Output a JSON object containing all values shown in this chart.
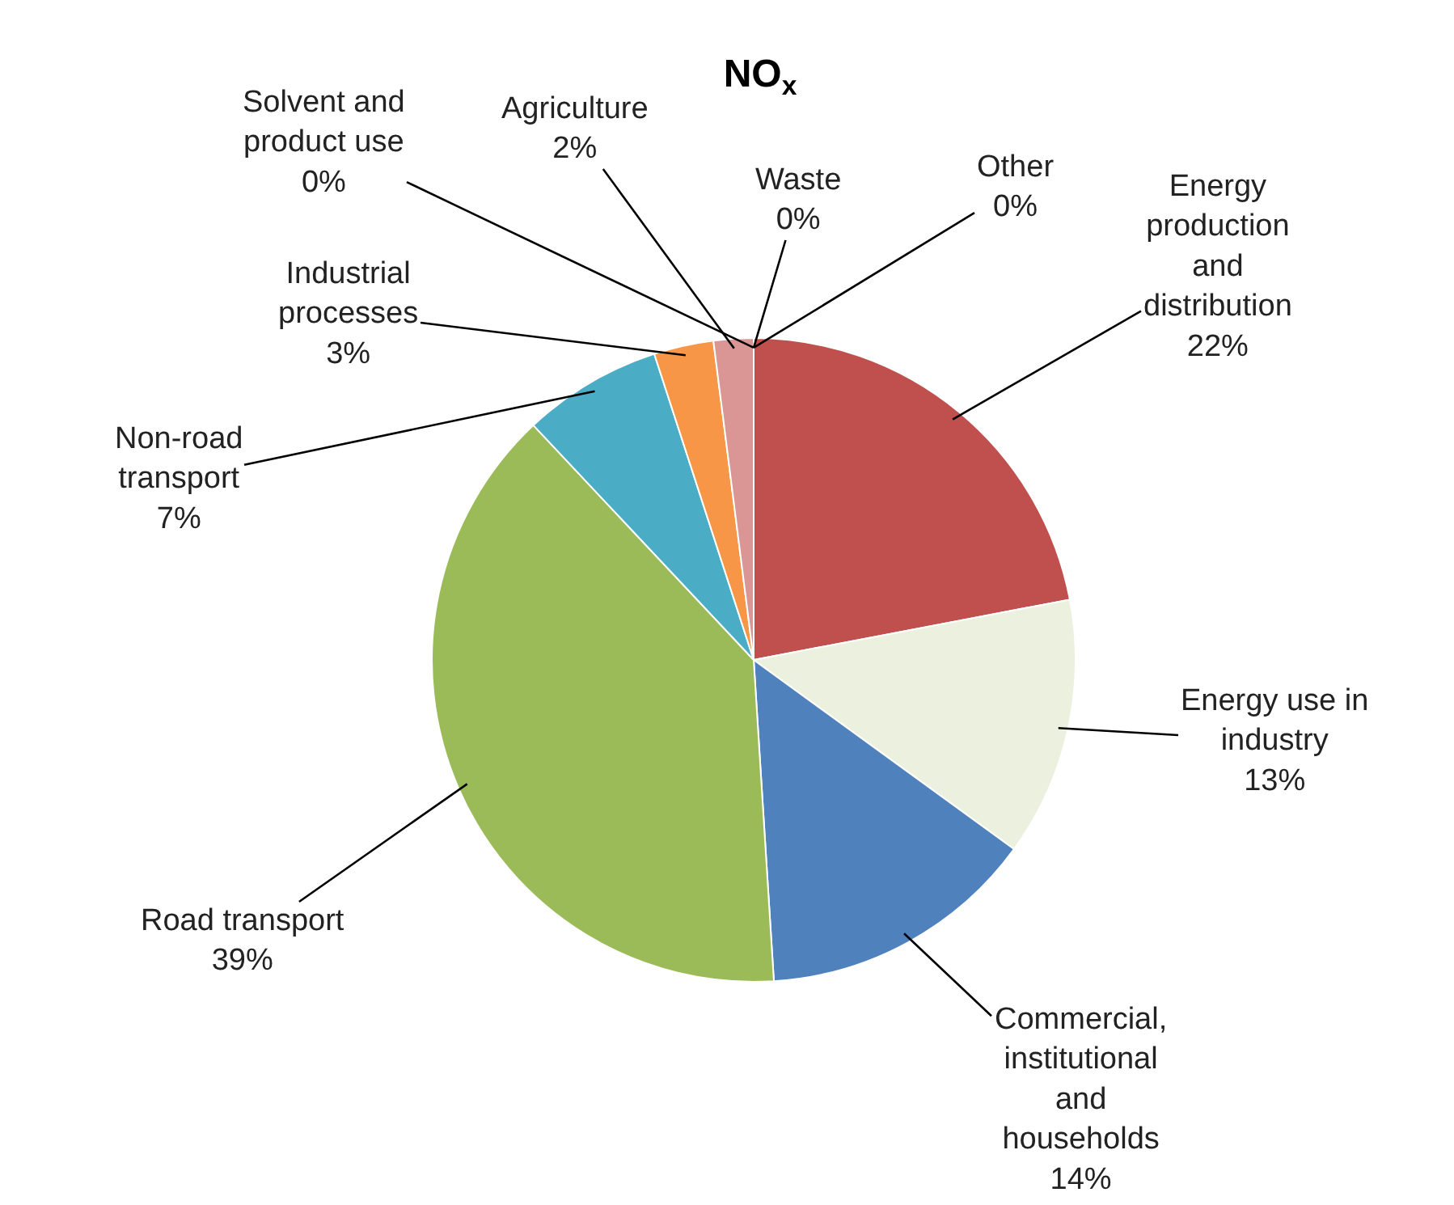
{
  "chart_data": {
    "type": "pie",
    "title": "NO$_{x}$",
    "categories": [
      "Energy production and distribution",
      "Energy use in industry",
      "Commercial, institutional and households",
      "Road transport",
      "Non-road transport",
      "Industrial processes",
      "Agriculture",
      "Solvent and product use",
      "Waste",
      "Other"
    ],
    "values": [
      22,
      13,
      14,
      39,
      7,
      3,
      2,
      0,
      0,
      0
    ],
    "value_labels": [
      "22%",
      "13%",
      "14%",
      "39%",
      "7%",
      "3%",
      "2%",
      "0%",
      "0%",
      "0%"
    ],
    "colors": [
      "#c0504d",
      "#ebf1de",
      "#4f81bd",
      "#9bbb59",
      "#4bacc6",
      "#f79646",
      "#d99694",
      "#bfbfbf",
      "#c3d69b",
      "#7f7f7f"
    ],
    "legend": false
  }
}
